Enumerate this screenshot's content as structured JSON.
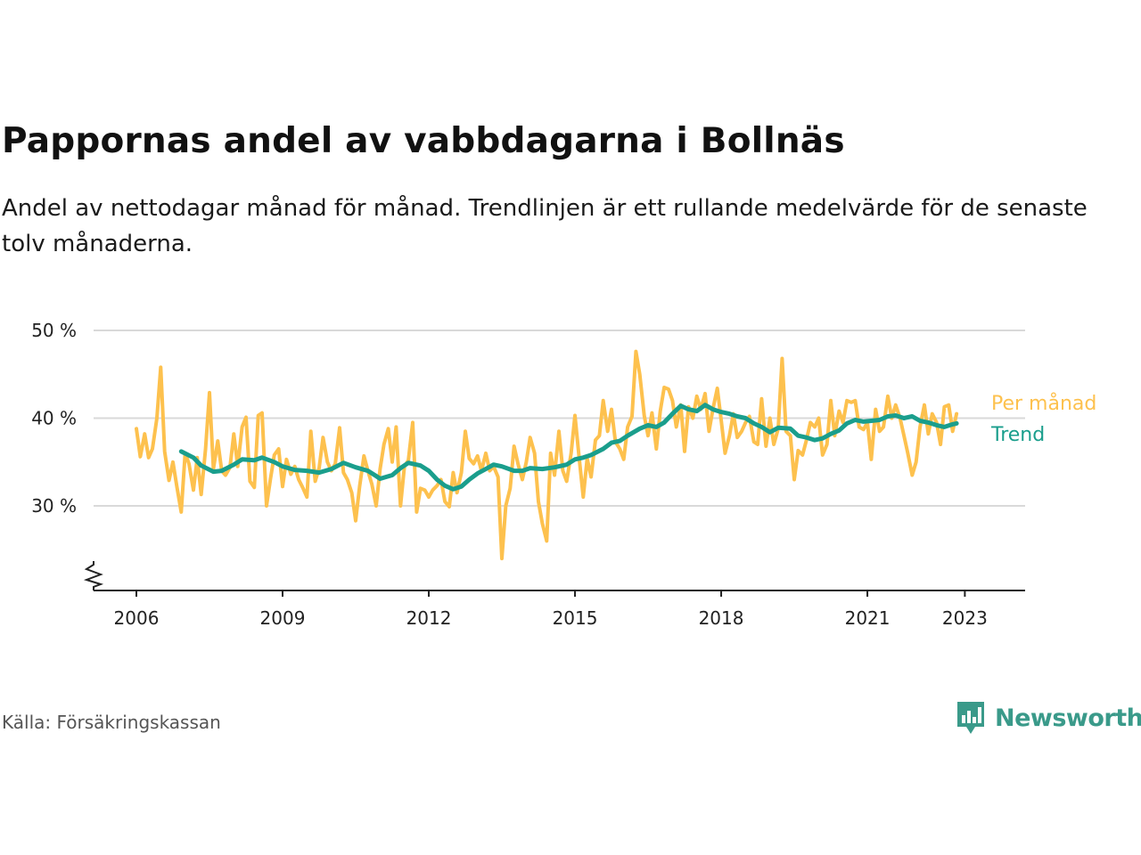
{
  "header": {
    "title": "Pappornas andel av vabbdagarna i Bollnäs",
    "subtitle": "Andel av nettodagar månad för månad. Trendlinjen är ett rullande medelvärde för de senaste tolv månaderna."
  },
  "footer": {
    "source": "Källa: Försäkringskassan",
    "brand": "Newsworthy",
    "brand_icon": "newsworthy-logo-icon"
  },
  "colors": {
    "monthly": "#fdc14e",
    "trend": "#1a9e8c",
    "grid": "#d9d9d9",
    "axis": "#222222",
    "brand": "#3a9a8a"
  },
  "chart_data": {
    "type": "line",
    "xlabel": "",
    "ylabel": "",
    "xlim": [
      2005.2,
      2024.4
    ],
    "ylim": [
      20,
      50
    ],
    "y_ticks": [
      30,
      40,
      50
    ],
    "y_tick_labels": [
      "30 %",
      "40 %",
      "50 %"
    ],
    "x_ticks": [
      2006,
      2009,
      2012,
      2015,
      2018,
      2021,
      2023
    ],
    "x_tick_labels": [
      "2006",
      "2009",
      "2012",
      "2015",
      "2018",
      "2021",
      "2023"
    ],
    "y_axis_break": true,
    "grid": "horizontal",
    "legend": "direct labels at right end of lines",
    "series": [
      {
        "name": "Per månad",
        "points": [
          [
            2006.0,
            38.8
          ],
          [
            2006.08,
            35.6
          ],
          [
            2006.17,
            38.2
          ],
          [
            2006.25,
            35.5
          ],
          [
            2006.33,
            36.5
          ],
          [
            2006.42,
            40.0
          ],
          [
            2006.5,
            45.8
          ],
          [
            2006.58,
            36.2
          ],
          [
            2006.67,
            32.9
          ],
          [
            2006.75,
            35.0
          ],
          [
            2006.83,
            32.2
          ],
          [
            2006.92,
            29.3
          ],
          [
            2007.0,
            36.0
          ],
          [
            2007.08,
            34.8
          ],
          [
            2007.17,
            31.8
          ],
          [
            2007.25,
            35.5
          ],
          [
            2007.33,
            31.3
          ],
          [
            2007.42,
            36.5
          ],
          [
            2007.5,
            42.9
          ],
          [
            2007.58,
            34.2
          ],
          [
            2007.67,
            37.4
          ],
          [
            2007.75,
            34.0
          ],
          [
            2007.83,
            33.5
          ],
          [
            2007.92,
            34.4
          ],
          [
            2008.0,
            38.2
          ],
          [
            2008.08,
            34.5
          ],
          [
            2008.17,
            39.0
          ],
          [
            2008.25,
            40.1
          ],
          [
            2008.33,
            32.8
          ],
          [
            2008.42,
            32.1
          ],
          [
            2008.5,
            40.3
          ],
          [
            2008.58,
            40.6
          ],
          [
            2008.67,
            30.0
          ],
          [
            2008.75,
            33.0
          ],
          [
            2008.83,
            35.8
          ],
          [
            2008.92,
            36.5
          ],
          [
            2009.0,
            32.2
          ],
          [
            2009.08,
            35.3
          ],
          [
            2009.17,
            33.6
          ],
          [
            2009.25,
            34.5
          ],
          [
            2009.33,
            33.0
          ],
          [
            2009.42,
            32.0
          ],
          [
            2009.5,
            31.0
          ],
          [
            2009.58,
            38.5
          ],
          [
            2009.67,
            32.8
          ],
          [
            2009.75,
            34.3
          ],
          [
            2009.83,
            37.8
          ],
          [
            2009.92,
            35.0
          ],
          [
            2010.0,
            34.0
          ],
          [
            2010.08,
            34.8
          ],
          [
            2010.17,
            38.9
          ],
          [
            2010.25,
            33.8
          ],
          [
            2010.33,
            33.0
          ],
          [
            2010.42,
            31.5
          ],
          [
            2010.5,
            28.3
          ],
          [
            2010.58,
            32.2
          ],
          [
            2010.67,
            35.7
          ],
          [
            2010.75,
            34.0
          ],
          [
            2010.83,
            32.5
          ],
          [
            2010.92,
            30.0
          ],
          [
            2011.0,
            34.2
          ],
          [
            2011.08,
            37.0
          ],
          [
            2011.17,
            38.8
          ],
          [
            2011.25,
            35.0
          ],
          [
            2011.33,
            39.0
          ],
          [
            2011.42,
            30.0
          ],
          [
            2011.5,
            34.5
          ],
          [
            2011.58,
            35.2
          ],
          [
            2011.67,
            39.5
          ],
          [
            2011.75,
            29.3
          ],
          [
            2011.83,
            32.0
          ],
          [
            2011.92,
            31.8
          ],
          [
            2012.0,
            31.0
          ],
          [
            2012.08,
            31.8
          ],
          [
            2012.17,
            32.3
          ],
          [
            2012.25,
            33.0
          ],
          [
            2012.33,
            30.5
          ],
          [
            2012.42,
            29.9
          ],
          [
            2012.5,
            33.8
          ],
          [
            2012.58,
            31.5
          ],
          [
            2012.67,
            33.8
          ],
          [
            2012.75,
            38.5
          ],
          [
            2012.83,
            35.4
          ],
          [
            2012.92,
            34.8
          ],
          [
            2013.0,
            35.7
          ],
          [
            2013.08,
            34.0
          ],
          [
            2013.17,
            36.0
          ],
          [
            2013.25,
            34.0
          ],
          [
            2013.33,
            34.5
          ],
          [
            2013.42,
            33.3
          ],
          [
            2013.5,
            24.0
          ],
          [
            2013.58,
            30.0
          ],
          [
            2013.67,
            32.0
          ],
          [
            2013.75,
            36.8
          ],
          [
            2013.83,
            34.8
          ],
          [
            2013.92,
            33.0
          ],
          [
            2014.0,
            35.0
          ],
          [
            2014.08,
            37.8
          ],
          [
            2014.17,
            36.0
          ],
          [
            2014.25,
            30.5
          ],
          [
            2014.33,
            28.0
          ],
          [
            2014.42,
            26.0
          ],
          [
            2014.5,
            36.0
          ],
          [
            2014.58,
            33.5
          ],
          [
            2014.67,
            38.5
          ],
          [
            2014.75,
            34.0
          ],
          [
            2014.83,
            32.8
          ],
          [
            2014.92,
            36.0
          ],
          [
            2015.0,
            40.3
          ],
          [
            2015.08,
            35.8
          ],
          [
            2015.17,
            31.0
          ],
          [
            2015.25,
            35.4
          ],
          [
            2015.33,
            33.3
          ],
          [
            2015.42,
            37.5
          ],
          [
            2015.5,
            38.0
          ],
          [
            2015.58,
            42.0
          ],
          [
            2015.67,
            38.5
          ],
          [
            2015.75,
            41.0
          ],
          [
            2015.83,
            37.3
          ],
          [
            2015.92,
            36.5
          ],
          [
            2016.0,
            35.3
          ],
          [
            2016.08,
            39.0
          ],
          [
            2016.17,
            40.2
          ],
          [
            2016.25,
            47.6
          ],
          [
            2016.33,
            45.0
          ],
          [
            2016.42,
            40.3
          ],
          [
            2016.5,
            38.0
          ],
          [
            2016.58,
            40.6
          ],
          [
            2016.67,
            36.5
          ],
          [
            2016.75,
            40.8
          ],
          [
            2016.83,
            43.5
          ],
          [
            2016.92,
            43.3
          ],
          [
            2017.0,
            42.0
          ],
          [
            2017.08,
            39.0
          ],
          [
            2017.17,
            41.5
          ],
          [
            2017.25,
            36.2
          ],
          [
            2017.33,
            41.3
          ],
          [
            2017.42,
            40.0
          ],
          [
            2017.5,
            42.5
          ],
          [
            2017.58,
            41.0
          ],
          [
            2017.67,
            42.8
          ],
          [
            2017.75,
            38.5
          ],
          [
            2017.83,
            41.0
          ],
          [
            2017.92,
            43.4
          ],
          [
            2018.0,
            39.8
          ],
          [
            2018.08,
            36.0
          ],
          [
            2018.17,
            38.0
          ],
          [
            2018.25,
            40.5
          ],
          [
            2018.33,
            37.8
          ],
          [
            2018.42,
            38.5
          ],
          [
            2018.5,
            39.5
          ],
          [
            2018.58,
            40.2
          ],
          [
            2018.67,
            37.3
          ],
          [
            2018.75,
            37.0
          ],
          [
            2018.83,
            42.2
          ],
          [
            2018.92,
            36.8
          ],
          [
            2019.0,
            40.0
          ],
          [
            2019.08,
            37.0
          ],
          [
            2019.17,
            38.8
          ],
          [
            2019.25,
            46.8
          ],
          [
            2019.33,
            38.5
          ],
          [
            2019.42,
            38.0
          ],
          [
            2019.5,
            33.0
          ],
          [
            2019.58,
            36.3
          ],
          [
            2019.67,
            35.8
          ],
          [
            2019.75,
            37.5
          ],
          [
            2019.83,
            39.5
          ],
          [
            2019.92,
            39.0
          ],
          [
            2020.0,
            40.0
          ],
          [
            2020.08,
            35.8
          ],
          [
            2020.17,
            37.0
          ],
          [
            2020.25,
            42.0
          ],
          [
            2020.33,
            38.0
          ],
          [
            2020.42,
            40.8
          ],
          [
            2020.5,
            39.5
          ],
          [
            2020.58,
            42.0
          ],
          [
            2020.67,
            41.8
          ],
          [
            2020.75,
            42.0
          ],
          [
            2020.83,
            39.0
          ],
          [
            2020.92,
            38.7
          ],
          [
            2021.0,
            39.5
          ],
          [
            2021.08,
            35.3
          ],
          [
            2021.17,
            41.0
          ],
          [
            2021.25,
            38.5
          ],
          [
            2021.33,
            39.0
          ],
          [
            2021.42,
            42.5
          ],
          [
            2021.5,
            40.0
          ],
          [
            2021.58,
            41.5
          ],
          [
            2021.67,
            40.0
          ],
          [
            2021.75,
            38.0
          ],
          [
            2021.83,
            36.0
          ],
          [
            2021.92,
            33.5
          ],
          [
            2022.0,
            35.0
          ],
          [
            2022.08,
            39.0
          ],
          [
            2022.17,
            41.5
          ],
          [
            2022.25,
            38.2
          ],
          [
            2022.33,
            40.5
          ],
          [
            2022.42,
            39.5
          ],
          [
            2022.5,
            37.0
          ],
          [
            2022.58,
            41.3
          ],
          [
            2022.67,
            41.5
          ],
          [
            2022.75,
            38.5
          ],
          [
            2022.83,
            40.5
          ]
        ]
      },
      {
        "name": "Trend",
        "points": [
          [
            2006.92,
            36.2
          ],
          [
            2007.17,
            35.5
          ],
          [
            2007.33,
            34.6
          ],
          [
            2007.58,
            33.9
          ],
          [
            2007.75,
            34.0
          ],
          [
            2008.0,
            34.7
          ],
          [
            2008.17,
            35.3
          ],
          [
            2008.42,
            35.2
          ],
          [
            2008.58,
            35.5
          ],
          [
            2008.83,
            35.0
          ],
          [
            2009.0,
            34.5
          ],
          [
            2009.25,
            34.1
          ],
          [
            2009.5,
            34.0
          ],
          [
            2009.75,
            33.8
          ],
          [
            2010.0,
            34.2
          ],
          [
            2010.25,
            34.9
          ],
          [
            2010.5,
            34.4
          ],
          [
            2010.75,
            34.0
          ],
          [
            2010.92,
            33.4
          ],
          [
            2011.0,
            33.1
          ],
          [
            2011.25,
            33.5
          ],
          [
            2011.42,
            34.3
          ],
          [
            2011.58,
            34.9
          ],
          [
            2011.83,
            34.6
          ],
          [
            2012.0,
            34.0
          ],
          [
            2012.17,
            33.0
          ],
          [
            2012.33,
            32.3
          ],
          [
            2012.5,
            31.9
          ],
          [
            2012.67,
            32.2
          ],
          [
            2012.83,
            33.0
          ],
          [
            2013.0,
            33.7
          ],
          [
            2013.17,
            34.2
          ],
          [
            2013.33,
            34.7
          ],
          [
            2013.5,
            34.5
          ],
          [
            2013.75,
            34.0
          ],
          [
            2013.92,
            34.0
          ],
          [
            2014.08,
            34.3
          ],
          [
            2014.33,
            34.2
          ],
          [
            2014.58,
            34.4
          ],
          [
            2014.83,
            34.7
          ],
          [
            2015.0,
            35.3
          ],
          [
            2015.17,
            35.5
          ],
          [
            2015.33,
            35.8
          ],
          [
            2015.58,
            36.5
          ],
          [
            2015.75,
            37.2
          ],
          [
            2015.92,
            37.4
          ],
          [
            2016.08,
            38.0
          ],
          [
            2016.33,
            38.8
          ],
          [
            2016.5,
            39.2
          ],
          [
            2016.67,
            39.0
          ],
          [
            2016.83,
            39.5
          ],
          [
            2017.0,
            40.5
          ],
          [
            2017.17,
            41.4
          ],
          [
            2017.33,
            41.0
          ],
          [
            2017.5,
            40.8
          ],
          [
            2017.67,
            41.5
          ],
          [
            2017.83,
            41.0
          ],
          [
            2018.0,
            40.7
          ],
          [
            2018.17,
            40.5
          ],
          [
            2018.33,
            40.2
          ],
          [
            2018.5,
            40.0
          ],
          [
            2018.67,
            39.4
          ],
          [
            2018.83,
            39.0
          ],
          [
            2019.0,
            38.4
          ],
          [
            2019.17,
            38.9
          ],
          [
            2019.42,
            38.8
          ],
          [
            2019.58,
            38.0
          ],
          [
            2019.75,
            37.8
          ],
          [
            2019.92,
            37.5
          ],
          [
            2020.08,
            37.7
          ],
          [
            2020.25,
            38.2
          ],
          [
            2020.42,
            38.6
          ],
          [
            2020.58,
            39.4
          ],
          [
            2020.75,
            39.8
          ],
          [
            2020.92,
            39.6
          ],
          [
            2021.08,
            39.7
          ],
          [
            2021.25,
            39.8
          ],
          [
            2021.42,
            40.2
          ],
          [
            2021.58,
            40.3
          ],
          [
            2021.75,
            40.0
          ],
          [
            2021.92,
            40.2
          ],
          [
            2022.08,
            39.7
          ],
          [
            2022.25,
            39.5
          ],
          [
            2022.42,
            39.2
          ],
          [
            2022.58,
            39.0
          ],
          [
            2022.75,
            39.3
          ],
          [
            2022.83,
            39.4
          ]
        ]
      }
    ]
  }
}
